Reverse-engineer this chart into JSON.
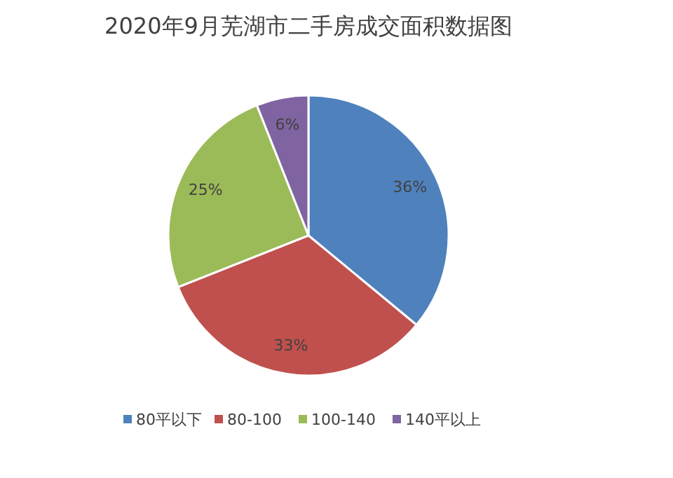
{
  "chart_data": {
    "type": "pie",
    "title": "2020年9月芜湖市二手房成交面积数据图",
    "categories": [
      "80平以下",
      "80-100",
      "100-140",
      "140平以上"
    ],
    "values": [
      36,
      33,
      25,
      6
    ],
    "colors": [
      "#4f81bd",
      "#c0504d",
      "#9bbb59",
      "#8064a2"
    ],
    "value_labels": [
      "36%",
      "33%",
      "25%",
      "6%"
    ],
    "legend": "bottom"
  }
}
